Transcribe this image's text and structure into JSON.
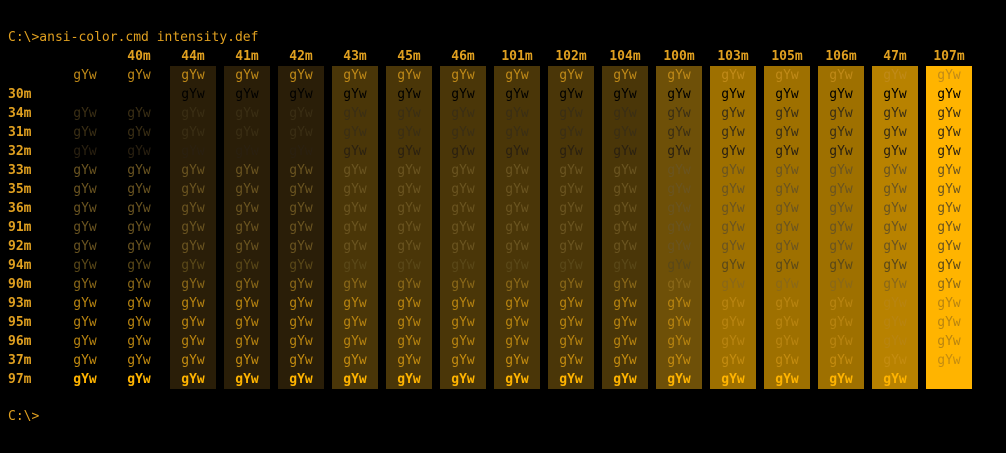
{
  "terminal": {
    "command_line": "C:\\>ansi-color.cmd intensity.def",
    "final_prompt": "C:\\>",
    "sample_text": "gYw"
  },
  "palette": {
    "text": "#E0A020",
    "bright_text": "#FFB400",
    "dim": "#5A4A20",
    "black": "#000000"
  },
  "columns": [
    {
      "code": "",
      "bg": "#000000"
    },
    {
      "code": "40m",
      "bg": "#000000"
    },
    {
      "code": "44m",
      "bg": "#2A1E08"
    },
    {
      "code": "41m",
      "bg": "#2A1E08"
    },
    {
      "code": "42m",
      "bg": "#2A1E08"
    },
    {
      "code": "43m",
      "bg": "#4A3608"
    },
    {
      "code": "45m",
      "bg": "#4A3608"
    },
    {
      "code": "46m",
      "bg": "#4A3608"
    },
    {
      "code": "101m",
      "bg": "#4A3608"
    },
    {
      "code": "102m",
      "bg": "#4A3608"
    },
    {
      "code": "104m",
      "bg": "#4A3608"
    },
    {
      "code": "100m",
      "bg": "#6E5008"
    },
    {
      "code": "103m",
      "bg": "#9E7000"
    },
    {
      "code": "105m",
      "bg": "#9E7000"
    },
    {
      "code": "106m",
      "bg": "#9E7000"
    },
    {
      "code": "47m",
      "bg": "#B88200"
    },
    {
      "code": "107m",
      "bg": "#FFB400"
    }
  ],
  "rows": [
    {
      "code": "",
      "fg": "#C08A18",
      "bold": false
    },
    {
      "code": "30m",
      "fg": "#000000",
      "bold": false
    },
    {
      "code": "34m",
      "fg": "#3A2E14",
      "bold": false
    },
    {
      "code": "31m",
      "fg": "#3A2E14",
      "bold": false
    },
    {
      "code": "32m",
      "fg": "#2A2010",
      "bold": false
    },
    {
      "code": "33m",
      "fg": "#6A5420",
      "bold": false
    },
    {
      "code": "35m",
      "fg": "#6A5420",
      "bold": false
    },
    {
      "code": "36m",
      "fg": "#6A5420",
      "bold": false
    },
    {
      "code": "91m",
      "fg": "#6A5420",
      "bold": false
    },
    {
      "code": "92m",
      "fg": "#6A5420",
      "bold": false
    },
    {
      "code": "94m",
      "fg": "#5A4818",
      "bold": false
    },
    {
      "code": "90m",
      "fg": "#8A6818",
      "bold": false
    },
    {
      "code": "93m",
      "fg": "#B88410",
      "bold": false
    },
    {
      "code": "95m",
      "fg": "#B88410",
      "bold": false
    },
    {
      "code": "96m",
      "fg": "#B88410",
      "bold": false
    },
    {
      "code": "37m",
      "fg": "#C48C10",
      "bold": false
    },
    {
      "code": "97m",
      "fg": "#FFB400",
      "bold": true
    }
  ]
}
